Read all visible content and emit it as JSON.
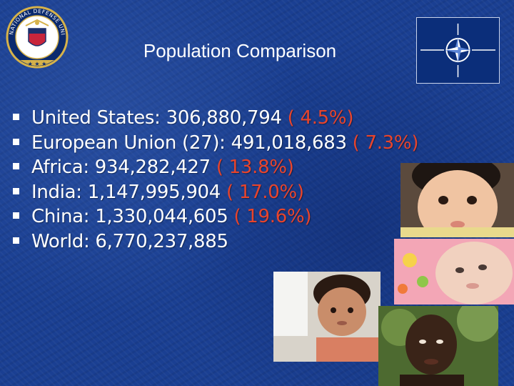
{
  "slide": {
    "title": "Population Comparison",
    "bullets": [
      {
        "label": "United States: 306,880,794",
        "pct": "( 4.5%)"
      },
      {
        "label": "European Union (27): 491,018,683",
        "pct": "( 7.3%)"
      },
      {
        "label": "Africa: 934,282,427",
        "pct": "( 13.8%)"
      },
      {
        "label": "India: 1,147,995,904",
        "pct": "( 17.0%)"
      },
      {
        "label": "China: 1,330,044,605",
        "pct": "( 19.6%)"
      },
      {
        "label": "World: 6,770,237,885",
        "pct": ""
      }
    ]
  },
  "seal": {
    "text": "NATIONAL DEFENSE UNIVERSITY",
    "icon": "ndu-seal-icon"
  },
  "flag": {
    "icon": "nato-compass-icon"
  },
  "colors": {
    "background": "#1a3f92",
    "percent": "#e8442c",
    "text": "#ffffff"
  }
}
